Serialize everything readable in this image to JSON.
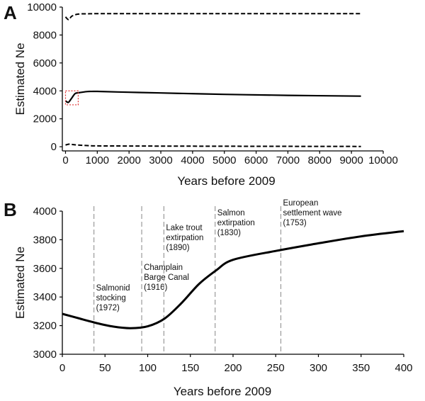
{
  "chart_data": [
    {
      "panel": "A",
      "type": "line",
      "xlabel": "Years before 2009",
      "ylabel": "Estimated Ne",
      "xlim": [
        0,
        10000
      ],
      "ylim": [
        0,
        10000
      ],
      "xticks": [
        0,
        1000,
        2000,
        3000,
        4000,
        5000,
        6000,
        7000,
        8000,
        9000,
        10000
      ],
      "yticks": [
        0,
        2000,
        4000,
        6000,
        8000,
        10000
      ],
      "series": [
        {
          "style": "dashed",
          "x": [
            0,
            100,
            200,
            400,
            700,
            1000,
            2000,
            4000,
            6000,
            8000,
            9300
          ],
          "y": [
            9300,
            9100,
            9350,
            9500,
            9520,
            9530,
            9530,
            9530,
            9530,
            9530,
            9530
          ]
        },
        {
          "style": "solid",
          "x": [
            0,
            50,
            100,
            200,
            300,
            400,
            700,
            1000,
            2000,
            3000,
            5000,
            7000,
            9300
          ],
          "y": [
            3280,
            3200,
            3190,
            3500,
            3800,
            3860,
            3950,
            3960,
            3900,
            3850,
            3750,
            3680,
            3620
          ]
        },
        {
          "style": "dashed",
          "x": [
            0,
            100,
            200,
            400,
            700,
            1000,
            2000,
            4000,
            6000,
            8000,
            9300
          ],
          "y": [
            120,
            180,
            160,
            120,
            80,
            60,
            50,
            40,
            30,
            25,
            20
          ]
        }
      ],
      "highlight_box": {
        "x": [
          0,
          400
        ],
        "y": [
          3000,
          4000
        ],
        "color": "#e03030"
      }
    },
    {
      "panel": "B",
      "type": "line",
      "xlabel": "Years before 2009",
      "ylabel": "Estimated Ne",
      "xlim": [
        0,
        400
      ],
      "ylim": [
        3000,
        4000
      ],
      "xticks": [
        0,
        50,
        100,
        150,
        200,
        250,
        300,
        350,
        400
      ],
      "yticks": [
        3000,
        3200,
        3400,
        3600,
        3800,
        4000
      ],
      "series": [
        {
          "style": "solid",
          "x": [
            0,
            20,
            40,
            60,
            80,
            100,
            120,
            140,
            160,
            180,
            200,
            250,
            300,
            350,
            400
          ],
          "y": [
            3282,
            3250,
            3218,
            3193,
            3182,
            3195,
            3250,
            3360,
            3490,
            3585,
            3660,
            3722,
            3775,
            3824,
            3860
          ]
        }
      ],
      "events": [
        {
          "x": 37,
          "lines": [
            "Salmonid",
            "stocking",
            "(1972)"
          ]
        },
        {
          "x": 93,
          "lines": [
            "Champlain",
            "Barge Canal",
            "(1916)"
          ]
        },
        {
          "x": 119,
          "lines": [
            "Lake trout",
            "extirpation",
            "(1890)"
          ]
        },
        {
          "x": 179,
          "lines": [
            "Salmon",
            "extirpation",
            "(1830)"
          ]
        },
        {
          "x": 256,
          "lines": [
            "European",
            "settlement wave",
            "(1753)"
          ]
        }
      ]
    }
  ]
}
